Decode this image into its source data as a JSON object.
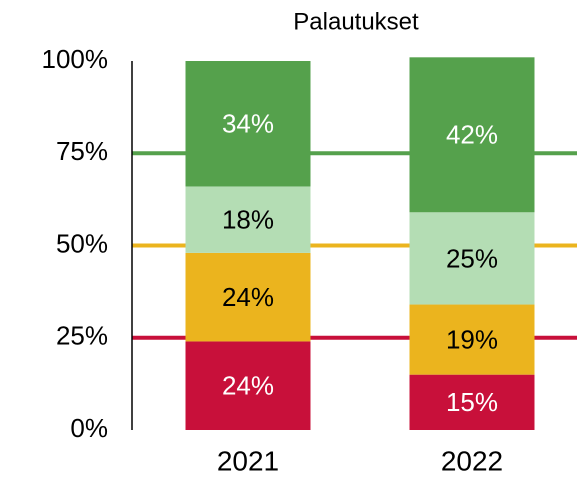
{
  "chart_data": {
    "type": "stacked_bar",
    "title": "Palautukset",
    "categories": [
      "2021",
      "2022"
    ],
    "series": [
      {
        "name": "Red",
        "color": "#c8103a",
        "label_color": "#ffffff",
        "values": [
          24,
          15
        ],
        "value_labels": [
          "24%",
          "15%"
        ]
      },
      {
        "name": "Yellow",
        "color": "#ebb41e",
        "label_color": "#000000",
        "values": [
          24,
          19
        ],
        "value_labels": [
          "24%",
          "19%"
        ]
      },
      {
        "name": "Light green",
        "color": "#b4ddb4",
        "label_color": "#000000",
        "values": [
          18,
          25
        ],
        "value_labels": [
          "18%",
          "25%"
        ]
      },
      {
        "name": "Green",
        "color": "#55a14c",
        "label_color": "#ffffff",
        "values": [
          34,
          42
        ],
        "value_labels": [
          "34%",
          "42%"
        ]
      }
    ],
    "reference_lines": [
      {
        "value": 25,
        "color": "#c8103a"
      },
      {
        "value": 50,
        "color": "#ebb41e"
      },
      {
        "value": 75,
        "color": "#55a14c"
      }
    ],
    "ylim": [
      0,
      100
    ],
    "yticks": [
      {
        "value": 0,
        "label": "0%"
      },
      {
        "value": 25,
        "label": "25%"
      },
      {
        "value": 50,
        "label": "50%"
      },
      {
        "value": 75,
        "label": "75%"
      },
      {
        "value": 100,
        "label": "100%"
      }
    ],
    "grid": false
  }
}
